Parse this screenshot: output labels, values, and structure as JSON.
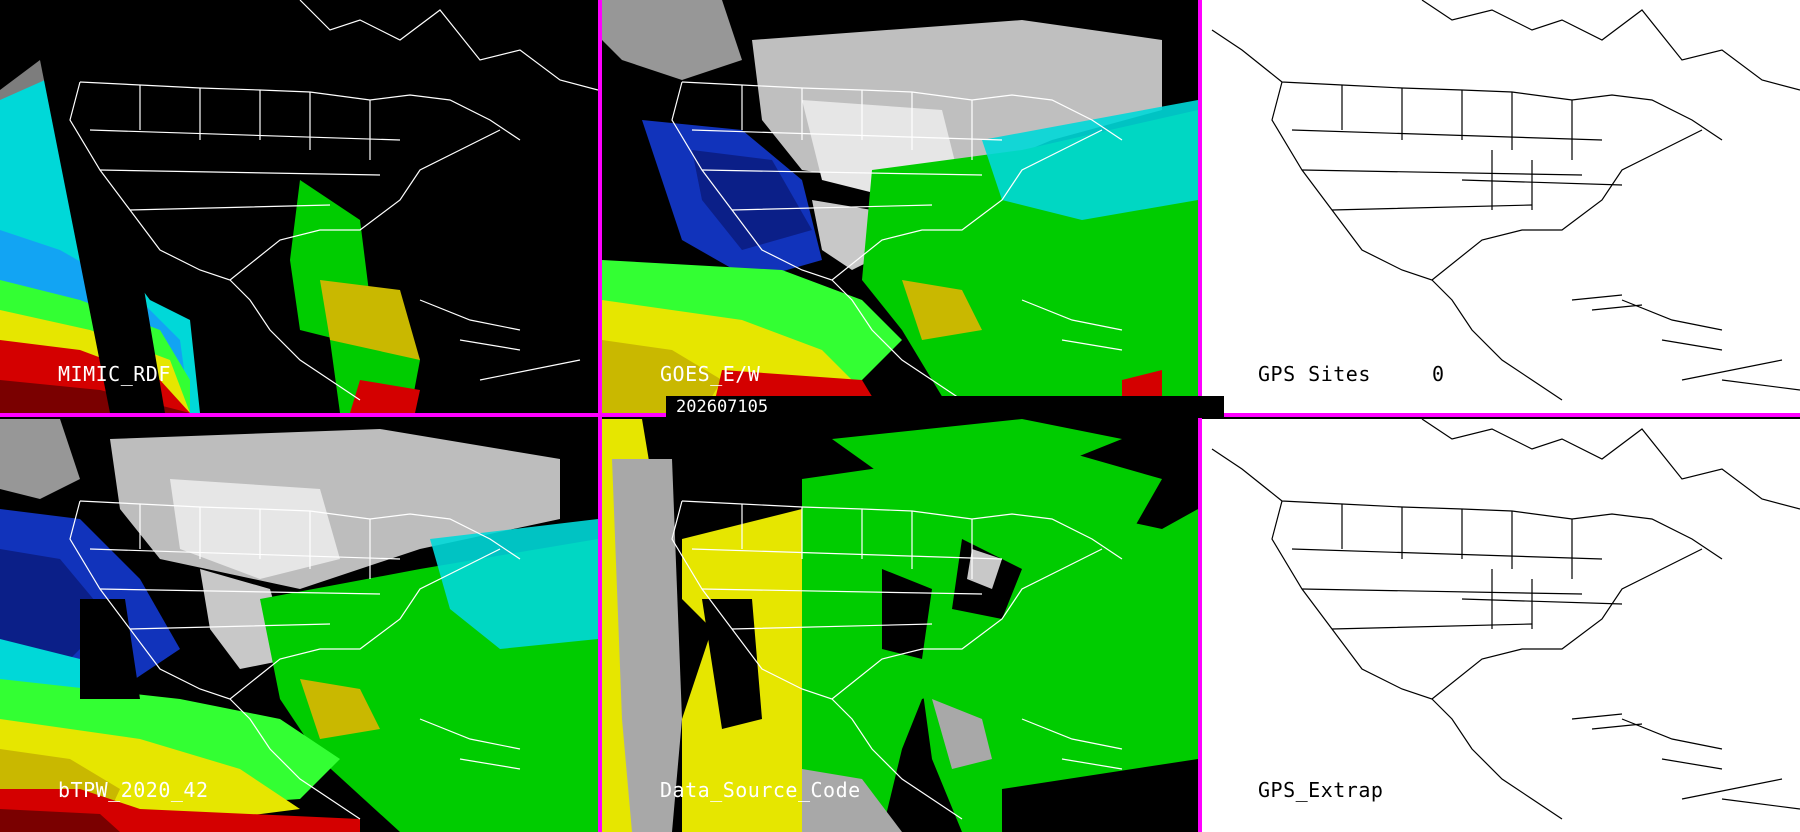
{
  "panels": [
    {
      "label": "MIMIC_RDF"
    },
    {
      "label": "GOES_E/W"
    },
    {
      "label": "GPS Sites",
      "value": "0"
    },
    {
      "label": "bTPW_2020_42"
    },
    {
      "label": "Data_Source_Code"
    },
    {
      "label": "GPS_Extrap"
    }
  ],
  "timestamp": "202607105",
  "colors": {
    "divider": "#ff00ff",
    "land_outline_dark": "#ffffff",
    "land_outline_light": "#000000",
    "moisture_scale": [
      "#7a0000",
      "#d40000",
      "#c9b800",
      "#e6e600",
      "#00cc00",
      "#33ff33",
      "#00e5e5",
      "#1aa0ff",
      "#0020aa",
      "#d8d8d8"
    ]
  }
}
